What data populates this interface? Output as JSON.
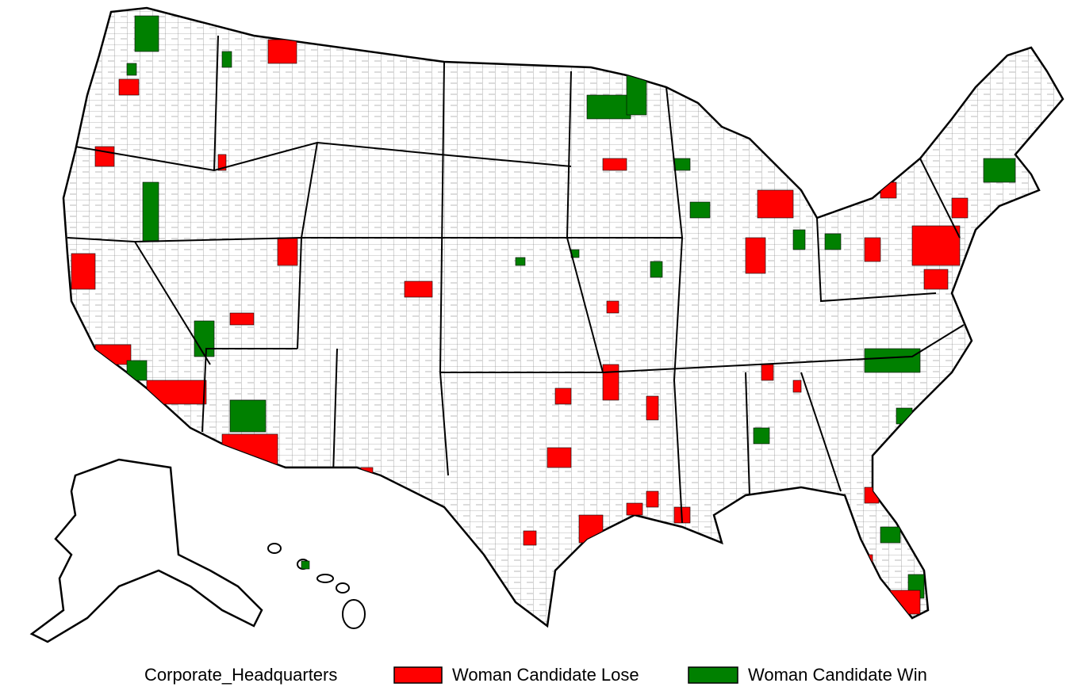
{
  "legend": {
    "title": "Corporate_Headquarters",
    "items": [
      {
        "label": "Woman Candidate Lose",
        "color": "#ff0000"
      },
      {
        "label": "Woman Candidate Win",
        "color": "#008000"
      }
    ]
  }
}
